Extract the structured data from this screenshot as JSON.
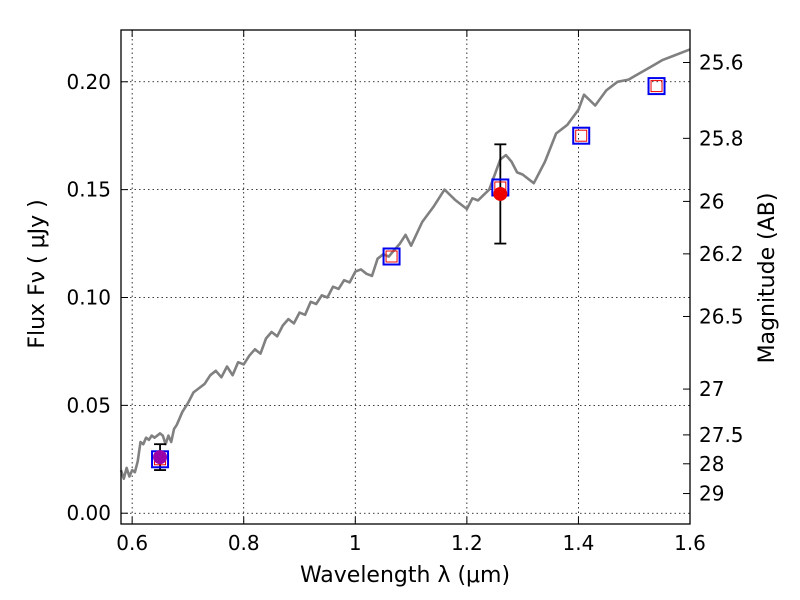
{
  "chart_data": {
    "type": "scatter",
    "title": "",
    "xlabel": "Wavelength  λ (μm)",
    "ylabel": "Flux  Fν  ( μJy )",
    "y2label": "Magnitude (AB)",
    "xlim": [
      0.58,
      1.6
    ],
    "ylim": [
      -0.005,
      0.224
    ],
    "grid": true,
    "x_ticks": [
      0.6,
      0.8,
      1.0,
      1.2,
      1.4,
      1.6
    ],
    "x_tick_labels": [
      "0.6",
      "0.8",
      "1",
      "1.2",
      "1.4",
      "1.6"
    ],
    "y_ticks": [
      0.0,
      0.05,
      0.1,
      0.15,
      0.2
    ],
    "y_tick_labels": [
      "0.00",
      "0.05",
      "0.10",
      "0.15",
      "0.20"
    ],
    "mag_ticks": [
      25.6,
      25.8,
      26,
      26.2,
      26.5,
      27,
      27.5,
      28,
      29
    ],
    "mag_tick_labels": [
      "25.6",
      "25.8",
      "26",
      "26.2",
      "26.5",
      "27",
      "27.5",
      "28",
      "29"
    ],
    "colors": {
      "model": "#808080",
      "observed": "#ee0000",
      "observed_upper": "#9900aa",
      "synthetic_outer": "#0000ee",
      "synthetic_inner": "#ee0000",
      "errorbar": "#000000"
    },
    "series": [
      {
        "kind": "model_spectrum",
        "x": [
          0.58,
          0.585,
          0.59,
          0.595,
          0.6,
          0.605,
          0.61,
          0.615,
          0.62,
          0.625,
          0.63,
          0.635,
          0.64,
          0.645,
          0.65,
          0.655,
          0.66,
          0.665,
          0.67,
          0.675,
          0.68,
          0.69,
          0.7,
          0.71,
          0.72,
          0.73,
          0.74,
          0.75,
          0.76,
          0.77,
          0.78,
          0.79,
          0.8,
          0.81,
          0.82,
          0.83,
          0.84,
          0.85,
          0.86,
          0.87,
          0.88,
          0.89,
          0.9,
          0.91,
          0.92,
          0.93,
          0.94,
          0.95,
          0.96,
          0.97,
          0.98,
          0.99,
          1.0,
          1.01,
          1.02,
          1.03,
          1.04,
          1.05,
          1.06,
          1.07,
          1.08,
          1.09,
          1.1,
          1.12,
          1.14,
          1.16,
          1.18,
          1.2,
          1.21,
          1.22,
          1.24,
          1.25,
          1.26,
          1.27,
          1.28,
          1.29,
          1.3,
          1.32,
          1.34,
          1.36,
          1.38,
          1.4,
          1.41,
          1.43,
          1.45,
          1.47,
          1.49,
          1.51,
          1.53,
          1.55,
          1.57,
          1.59,
          1.6
        ],
        "y": [
          0.02,
          0.016,
          0.021,
          0.017,
          0.02,
          0.019,
          0.024,
          0.033,
          0.032,
          0.035,
          0.034,
          0.036,
          0.035,
          0.036,
          0.037,
          0.036,
          0.032,
          0.036,
          0.033,
          0.039,
          0.041,
          0.047,
          0.051,
          0.056,
          0.058,
          0.06,
          0.064,
          0.066,
          0.063,
          0.068,
          0.064,
          0.07,
          0.069,
          0.073,
          0.076,
          0.074,
          0.081,
          0.084,
          0.082,
          0.087,
          0.09,
          0.088,
          0.093,
          0.092,
          0.098,
          0.097,
          0.101,
          0.1,
          0.105,
          0.104,
          0.108,
          0.107,
          0.112,
          0.113,
          0.111,
          0.11,
          0.118,
          0.12,
          0.119,
          0.122,
          0.125,
          0.129,
          0.124,
          0.135,
          0.142,
          0.15,
          0.145,
          0.141,
          0.146,
          0.145,
          0.15,
          0.157,
          0.164,
          0.166,
          0.163,
          0.158,
          0.157,
          0.153,
          0.163,
          0.176,
          0.18,
          0.187,
          0.194,
          0.189,
          0.196,
          0.2,
          0.201,
          0.204,
          0.207,
          0.21,
          0.212,
          0.214,
          0.215
        ]
      },
      {
        "kind": "observed",
        "points": [
          {
            "x": 0.65,
            "y": 0.026,
            "yerr": 0.006,
            "color": "#9900aa"
          },
          {
            "x": 1.26,
            "y": 0.148,
            "yerr": 0.023,
            "color": "#ee0000"
          }
        ]
      },
      {
        "kind": "synthetic_photometry",
        "points": [
          {
            "x": 0.65,
            "y": 0.025
          },
          {
            "x": 1.065,
            "y": 0.119
          },
          {
            "x": 1.26,
            "y": 0.151
          },
          {
            "x": 1.405,
            "y": 0.175
          },
          {
            "x": 1.54,
            "y": 0.198
          }
        ]
      }
    ]
  }
}
